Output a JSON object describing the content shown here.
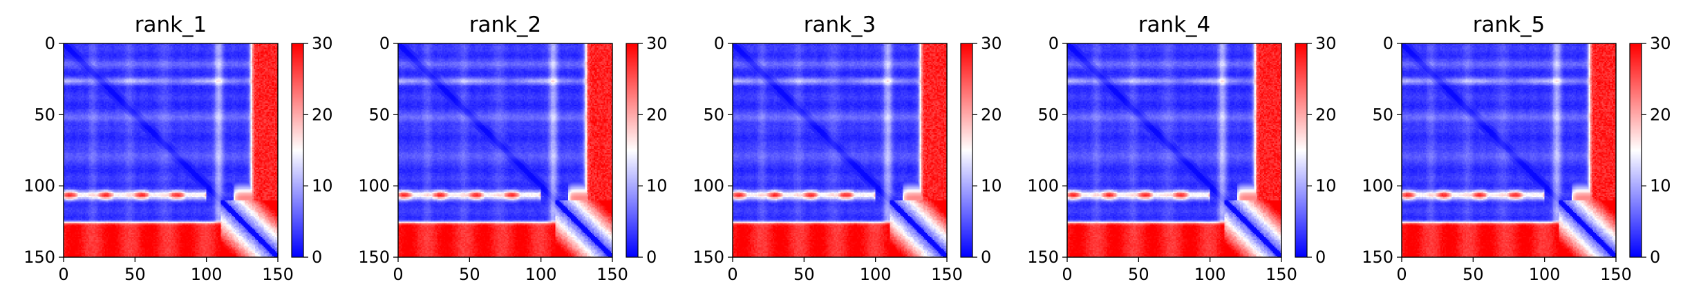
{
  "chart_data": [
    {
      "type": "heatmap",
      "title": "rank_1",
      "x_range": [
        0,
        150
      ],
      "y_range": [
        0,
        150
      ],
      "y_inverted": true,
      "x_ticks": [
        "0",
        "50",
        "100",
        "150"
      ],
      "y_ticks": [
        "0",
        "50",
        "100",
        "150"
      ],
      "colorbar": {
        "range": [
          0,
          30
        ],
        "ticks": [
          "0",
          "10",
          "20",
          "30"
        ],
        "colormap": "bwr"
      },
      "grid": false,
      "structure": {
        "diagonal": "low (blue)",
        "high_red_blocks": [
          {
            "rows": [
              125,
              150
            ],
            "cols": [
              0,
              120
            ],
            "value": 30
          },
          {
            "rows": [
              0,
              125
            ],
            "cols": [
              132,
              150
            ],
            "value": 28
          }
        ],
        "light_bands_rows": [
          26,
          106
        ],
        "light_band_cols": [
          108
        ]
      }
    },
    {
      "type": "heatmap",
      "title": "rank_2",
      "x_range": [
        0,
        150
      ],
      "y_range": [
        0,
        150
      ],
      "y_inverted": true,
      "x_ticks": [
        "0",
        "50",
        "100",
        "150"
      ],
      "y_ticks": [
        "0",
        "50",
        "100",
        "150"
      ],
      "colorbar": {
        "range": [
          0,
          30
        ],
        "ticks": [
          "0",
          "10",
          "20",
          "30"
        ],
        "colormap": "bwr"
      },
      "grid": false,
      "structure": {
        "diagonal": "low (blue)",
        "high_red_blocks": [
          {
            "rows": [
              125,
              150
            ],
            "cols": [
              0,
              120
            ],
            "value": 30
          },
          {
            "rows": [
              0,
              125
            ],
            "cols": [
              132,
              150
            ],
            "value": 28
          }
        ],
        "light_bands_rows": [
          26,
          106
        ],
        "light_band_cols": [
          108
        ]
      }
    },
    {
      "type": "heatmap",
      "title": "rank_3",
      "x_range": [
        0,
        150
      ],
      "y_range": [
        0,
        150
      ],
      "y_inverted": true,
      "x_ticks": [
        "0",
        "50",
        "100",
        "150"
      ],
      "y_ticks": [
        "0",
        "50",
        "100",
        "150"
      ],
      "colorbar": {
        "range": [
          0,
          30
        ],
        "ticks": [
          "0",
          "10",
          "20",
          "30"
        ],
        "colormap": "bwr"
      },
      "grid": false,
      "structure": {
        "diagonal": "low (blue)",
        "high_red_blocks": [
          {
            "rows": [
              125,
              150
            ],
            "cols": [
              0,
              120
            ],
            "value": 30
          },
          {
            "rows": [
              0,
              125
            ],
            "cols": [
              132,
              150
            ],
            "value": 28
          }
        ],
        "light_bands_rows": [
          26,
          106
        ],
        "light_band_cols": [
          108
        ]
      }
    },
    {
      "type": "heatmap",
      "title": "rank_4",
      "x_range": [
        0,
        150
      ],
      "y_range": [
        0,
        150
      ],
      "y_inverted": true,
      "x_ticks": [
        "0",
        "50",
        "100",
        "150"
      ],
      "y_ticks": [
        "0",
        "50",
        "100",
        "150"
      ],
      "colorbar": {
        "range": [
          0,
          30
        ],
        "ticks": [
          "0",
          "10",
          "20",
          "30"
        ],
        "colormap": "bwr"
      },
      "grid": false,
      "structure": {
        "diagonal": "low (blue)",
        "high_red_blocks": [
          {
            "rows": [
              125,
              150
            ],
            "cols": [
              0,
              120
            ],
            "value": 30
          },
          {
            "rows": [
              0,
              125
            ],
            "cols": [
              132,
              150
            ],
            "value": 28
          }
        ],
        "light_bands_rows": [
          26,
          106
        ],
        "light_band_cols": [
          108
        ]
      }
    },
    {
      "type": "heatmap",
      "title": "rank_5",
      "x_range": [
        0,
        150
      ],
      "y_range": [
        0,
        150
      ],
      "y_inverted": true,
      "x_ticks": [
        "0",
        "50",
        "100",
        "150"
      ],
      "y_ticks": [
        "0",
        "50",
        "100",
        "150"
      ],
      "colorbar": {
        "range": [
          0,
          30
        ],
        "ticks": [
          "0",
          "10",
          "20",
          "30"
        ],
        "colormap": "bwr"
      },
      "grid": false,
      "structure": {
        "diagonal": "low (blue)",
        "high_red_blocks": [
          {
            "rows": [
              125,
              150
            ],
            "cols": [
              0,
              120
            ],
            "value": 30
          },
          {
            "rows": [
              0,
              125
            ],
            "cols": [
              132,
              150
            ],
            "value": 28
          }
        ],
        "light_bands_rows": [
          26,
          106
        ],
        "light_band_cols": [
          108
        ]
      }
    }
  ]
}
